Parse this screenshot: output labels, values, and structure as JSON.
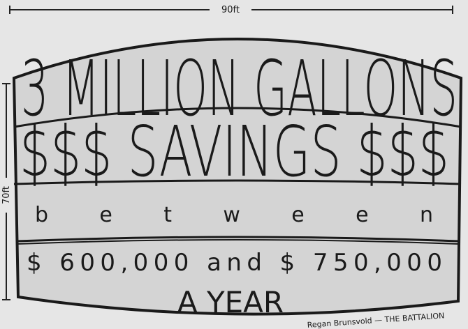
{
  "dimensions": {
    "width_label": "90ft",
    "height_label": "70ft"
  },
  "tank": {
    "line1": "3 MILLION GALLONS",
    "line2": "$$$ SAVINGS $$$",
    "line3": "b e t w e e n",
    "line4": "$ 600,000 and $ 750,000",
    "line5": "A YEAR"
  },
  "credit": "Regan Brunsvold — THE BATTALION"
}
